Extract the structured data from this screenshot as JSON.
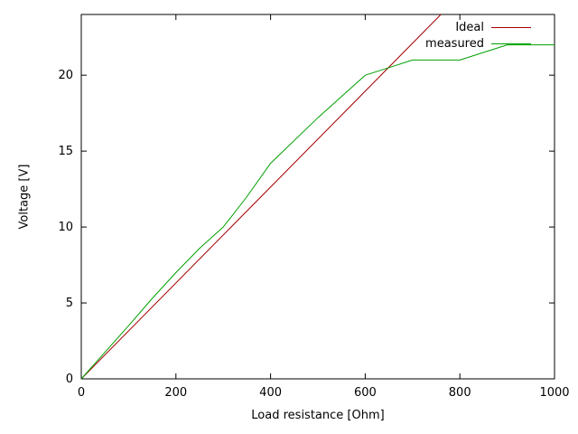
{
  "chart_data": {
    "type": "line",
    "title": "",
    "xlabel": "Load resistance [Ohm]",
    "ylabel": "Voltage [V]",
    "xlim": [
      0,
      1000
    ],
    "ylim": [
      0,
      24
    ],
    "xticks": [
      0,
      200,
      400,
      600,
      800,
      1000
    ],
    "yticks": [
      0,
      5,
      10,
      15,
      20
    ],
    "grid": false,
    "legend_position": "top-right-inside",
    "series": [
      {
        "name": "Ideal",
        "color": "#a40000",
        "points": [
          [
            0,
            0
          ],
          [
            760,
            24
          ]
        ]
      },
      {
        "name": "measured",
        "color": "#00a000",
        "points": [
          [
            0,
            0
          ],
          [
            20,
            0.7
          ],
          [
            50,
            1.75
          ],
          [
            100,
            3.5
          ],
          [
            150,
            5.3
          ],
          [
            200,
            7
          ],
          [
            250,
            8.6
          ],
          [
            300,
            10
          ],
          [
            350,
            12
          ],
          [
            400,
            14.2
          ],
          [
            500,
            17.2
          ],
          [
            600,
            20
          ],
          [
            650,
            20.5
          ],
          [
            700,
            21
          ],
          [
            800,
            21
          ],
          [
            900,
            22
          ],
          [
            1000,
            22
          ]
        ]
      }
    ],
    "frame_color": "#000000",
    "background_color": "#ffffff"
  }
}
